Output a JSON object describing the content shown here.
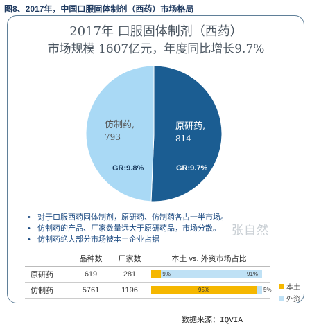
{
  "figure_title": "图8、2017年，中国口服固体制剂（西药）市场格局",
  "headline": {
    "line1": "2017年 口服固体制剂（西药）",
    "line2": "市场规模 1607亿元，年度同比增长9.7%"
  },
  "colors": {
    "generic": "#a9d9f5",
    "original": "#1b5d92",
    "local_bar": "#f5b700",
    "foreign_bar": "#bfe1f5",
    "border": "#5f7f98"
  },
  "chart_data": [
    {
      "type": "pie",
      "slices": [
        {
          "label": "原研药",
          "value": 814,
          "growth_label": "GR:9.7%"
        },
        {
          "label": "仿制药",
          "value": 793,
          "growth_label": "GR:9.8%"
        }
      ]
    },
    {
      "type": "bar",
      "stacked": true,
      "title": "本土 vs. 外资市场占比",
      "categories": [
        "原研药",
        "仿制药"
      ],
      "series": [
        {
          "name": "本土",
          "values": [
            9,
            95
          ]
        },
        {
          "name": "外资",
          "values": [
            91,
            5
          ]
        }
      ]
    }
  ],
  "bullets": [
    "对于口服西药固体制剂，原研药、仿制药各占一半市场。",
    "仿制药的产品、厂家数量远大于原研药品，市场分散。",
    "仿制药绝大部分市场被本土企业占据"
  ],
  "watermark": "张自然",
  "table": {
    "headers": [
      "",
      "品种数",
      "厂家数",
      "本土 vs. 外资市场占比"
    ],
    "rows": [
      {
        "name": "原研药",
        "varieties": "619",
        "makers": "281",
        "local": "9%",
        "foreign": "91%"
      },
      {
        "name": "仿制药",
        "varieties": "5761",
        "makers": "1196",
        "local": "95%",
        "foreign": "5%"
      }
    ]
  },
  "legend": {
    "local": "本土",
    "foreign": "外资"
  },
  "source": {
    "label": "数据来源：",
    "value": "IQVIA"
  }
}
